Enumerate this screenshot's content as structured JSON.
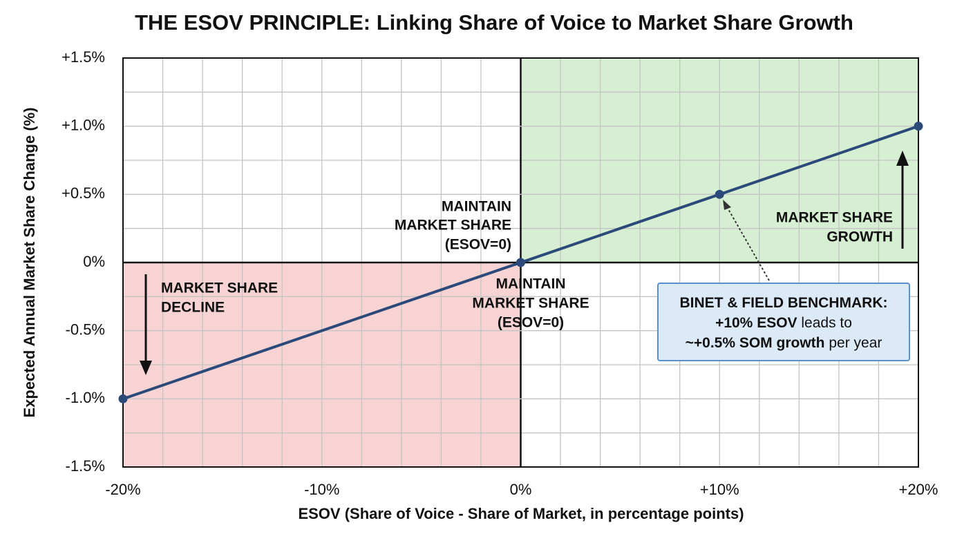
{
  "chart_data": {
    "type": "line",
    "title": "THE ESOV PRINCIPLE: Linking Share of Voice to Market Share Growth",
    "x_label": "ESOV (Share of Voice - Share of Market, in percentage points)",
    "y_label": "Expected Annual Market Share Change (%)",
    "x": [
      -20,
      0,
      10,
      20
    ],
    "series": [
      {
        "name": "ESOV",
        "color": "#2b4a7a",
        "values": [
          -1.0,
          0,
          0.5,
          1.0
        ]
      }
    ],
    "xlim": [
      -20,
      20
    ],
    "ylim": [
      -1.5,
      1.5
    ],
    "xticks": [
      {
        "value": -20,
        "label": "-20%"
      },
      {
        "value": -10,
        "label": "-10%"
      },
      {
        "value": 0,
        "label": "0%"
      },
      {
        "value": 10,
        "label": "+10%"
      },
      {
        "value": 20,
        "label": "+20%"
      }
    ],
    "yticks": [
      {
        "value": -1.5,
        "label": "-1.5%"
      },
      {
        "value": -1.0,
        "label": "-1.0%"
      },
      {
        "value": -0.5,
        "label": "-0.5%"
      },
      {
        "value": 0,
        "label": "0%"
      },
      {
        "value": 0.5,
        "label": "+0.5%"
      },
      {
        "value": 1.0,
        "label": "+1.0%"
      },
      {
        "value": 1.5,
        "label": "+1.5%"
      }
    ],
    "x_minor_ticks": [
      -18,
      -16,
      -14,
      -12,
      -8,
      -6,
      -4,
      -2,
      2,
      4,
      6,
      8,
      12,
      14,
      16,
      18
    ],
    "y_minor_ticks": [
      -1.25,
      -0.75,
      -0.25,
      0.25,
      0.75,
      1.25
    ],
    "grid": true,
    "negative_region_color": "#f8d3d3",
    "positive_region_color": "#d6efd2",
    "annotations": {
      "maintain_above": [
        "MAINTAIN",
        "MARKET SHARE",
        "(ESOV=0)"
      ],
      "maintain_below": [
        "MAINTAIN",
        "MARKET SHARE",
        "(ESOV=0)"
      ],
      "decline": [
        "MARKET SHARE",
        "DECLINE"
      ],
      "growth": [
        "MARKET SHARE",
        "GROWTH"
      ],
      "benchmark": [
        [
          "BINET & FIELD BENCHMARK:"
        ],
        [
          "+10% ESOV",
          " leads to"
        ],
        [
          "~+0.5% SOM growth",
          " per year"
        ]
      ]
    }
  }
}
